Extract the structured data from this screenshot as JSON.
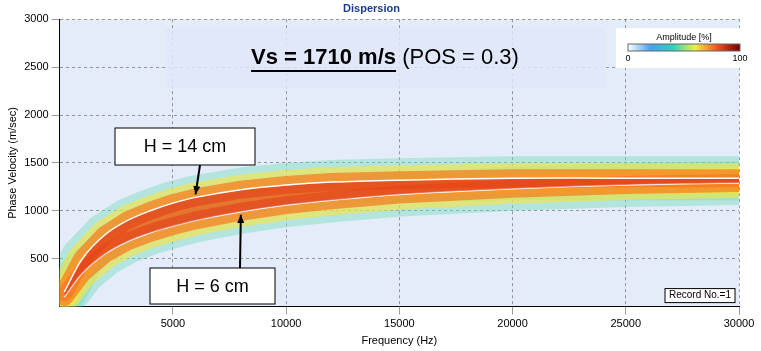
{
  "chart_data": {
    "type": "line",
    "title": "Dispersion",
    "x_label": "Frequency (Hz)",
    "y_label": "Phase Velocity (m/sec)",
    "xlim": [
      0,
      30000
    ],
    "xticks": [
      5000,
      10000,
      15000,
      20000,
      25000,
      30000
    ],
    "ylim": [
      0,
      3000
    ],
    "yticks": [
      500,
      1000,
      1500,
      2000,
      2500,
      3000
    ],
    "grid": true,
    "x": [
      200,
      1000,
      2000,
      3000,
      4000,
      5000,
      6000,
      8000,
      10000,
      12000,
      15000,
      20000,
      25000,
      30000
    ],
    "series": [
      {
        "name": "H = 14 cm",
        "color": "#ffffff",
        "values": [
          150,
          500,
          750,
          900,
          1000,
          1080,
          1140,
          1220,
          1270,
          1300,
          1320,
          1340,
          1340,
          1340
        ]
      },
      {
        "name": "H = 6 cm",
        "color": "#ffffff",
        "values": [
          100,
          350,
          550,
          680,
          770,
          840,
          900,
          990,
          1060,
          1110,
          1170,
          1230,
          1270,
          1290
        ]
      }
    ],
    "annotations": [
      {
        "text": "Vs = 1710 m/s",
        "text_after": "(POS = 0.3)"
      }
    ],
    "colorbar": {
      "label": "Amplitude [%]",
      "range": [
        0,
        100
      ],
      "ticks": [
        0,
        100
      ]
    },
    "record_label": "Record No.=1"
  }
}
